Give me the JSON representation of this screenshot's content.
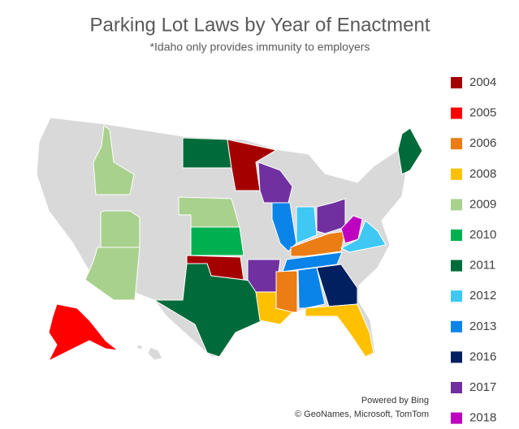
{
  "chart_data": {
    "type": "map",
    "title": "Parking Lot Laws by Year of Enactment",
    "subtitle": "*Idaho only provides immunity to employers",
    "categories": [
      "2004",
      "2005",
      "2006",
      "2008",
      "2009",
      "2010",
      "2011",
      "2012",
      "2013",
      "2016",
      "2017",
      "2018"
    ],
    "colors": [
      "#a50000",
      "#ff0000",
      "#ec7c14",
      "#ffc000",
      "#a9d18e",
      "#00b050",
      "#006b3a",
      "#3fc8f4",
      "#0b84ea",
      "#002060",
      "#7030a0",
      "#c000c0"
    ],
    "attribution": [
      "Powered by Bing",
      "© GeoNames, Microsoft, TomTom"
    ]
  }
}
